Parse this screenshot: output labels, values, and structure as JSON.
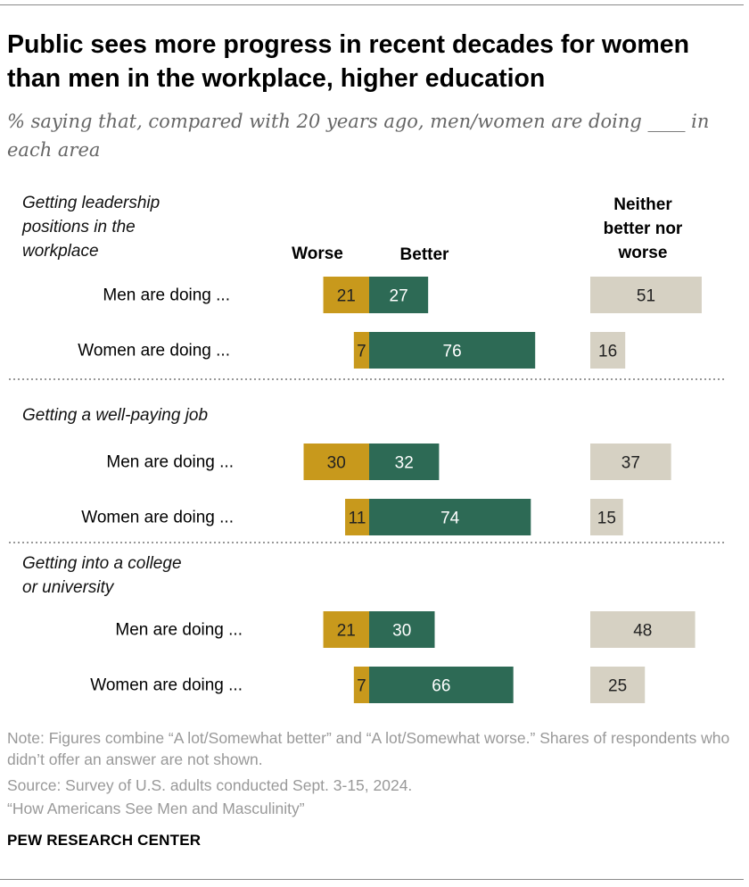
{
  "title": "Public sees more progress in recent decades for women than men in the workplace, higher education",
  "subtitle": "% saying that, compared with 20 years ago, men/women are doing ____ in each area",
  "chart_data": {
    "type": "bar",
    "stacking": "diverging",
    "columns": {
      "worse": "Worse",
      "better": "Better",
      "neither": "Neither better nor worse"
    },
    "colors": {
      "worse": "#c8991c",
      "better": "#2d6a55",
      "neither": "#d6d1c3"
    },
    "groups": [
      {
        "label": "Getting leadership positions in the workplace",
        "rows": [
          {
            "label": "Men are doing ...",
            "worse": 21,
            "better": 27,
            "neither": 51
          },
          {
            "label": "Women are doing ...",
            "worse": 7,
            "better": 76,
            "neither": 16
          }
        ]
      },
      {
        "label": "Getting a well-paying job",
        "rows": [
          {
            "label": "Men are doing ...",
            "worse": 30,
            "better": 32,
            "neither": 37
          },
          {
            "label": "Women are doing ...",
            "worse": 11,
            "better": 74,
            "neither": 15
          }
        ]
      },
      {
        "label": "Getting into a college or university",
        "rows": [
          {
            "label": "Men are doing ...",
            "worse": 21,
            "better": 30,
            "neither": 48
          },
          {
            "label": "Women are doing ...",
            "worse": 7,
            "better": 66,
            "neither": 25
          }
        ]
      }
    ]
  },
  "footer": {
    "note": "Note: Figures combine “A lot/Somewhat better” and “A lot/Somewhat worse.” Shares of respondents who didn’t offer an answer are not shown.",
    "source": "Source: Survey of U.S. adults conducted Sept. 3-15, 2024.",
    "report": "“How Americans See Men and Masculinity”",
    "logo": "PEW RESEARCH CENTER"
  }
}
